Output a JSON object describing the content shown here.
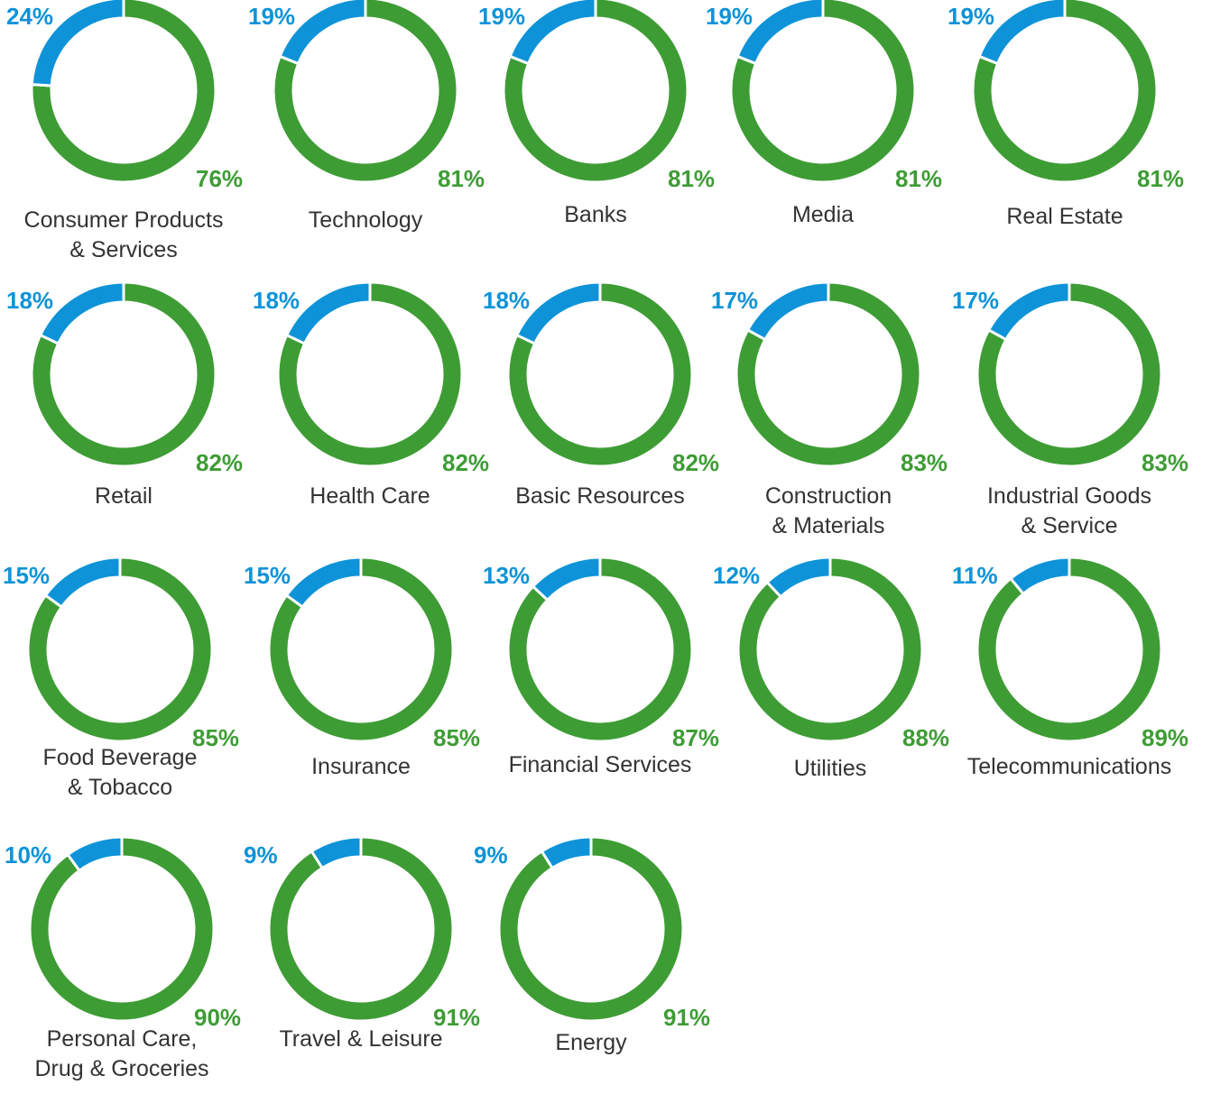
{
  "chart_data": [
    {
      "type": "donut",
      "title": "Consumer Products\n& Services",
      "values": [
        24,
        76
      ],
      "value_labels": [
        "24%",
        "76%"
      ],
      "colors": [
        "#0e93d8",
        "#3e9c35"
      ]
    },
    {
      "type": "donut",
      "title": "Technology",
      "values": [
        19,
        81
      ],
      "value_labels": [
        "19%",
        "81%"
      ],
      "colors": [
        "#0e93d8",
        "#3e9c35"
      ]
    },
    {
      "type": "donut",
      "title": "Banks",
      "values": [
        19,
        81
      ],
      "value_labels": [
        "19%",
        "81%"
      ],
      "colors": [
        "#0e93d8",
        "#3e9c35"
      ]
    },
    {
      "type": "donut",
      "title": "Media",
      "values": [
        19,
        81
      ],
      "value_labels": [
        "19%",
        "81%"
      ],
      "colors": [
        "#0e93d8",
        "#3e9c35"
      ]
    },
    {
      "type": "donut",
      "title": "Real Estate",
      "values": [
        19,
        81
      ],
      "value_labels": [
        "19%",
        "81%"
      ],
      "colors": [
        "#0e93d8",
        "#3e9c35"
      ]
    },
    {
      "type": "donut",
      "title": "Retail",
      "values": [
        18,
        82
      ],
      "value_labels": [
        "18%",
        "82%"
      ],
      "colors": [
        "#0e93d8",
        "#3e9c35"
      ]
    },
    {
      "type": "donut",
      "title": "Health Care",
      "values": [
        18,
        82
      ],
      "value_labels": [
        "18%",
        "82%"
      ],
      "colors": [
        "#0e93d8",
        "#3e9c35"
      ]
    },
    {
      "type": "donut",
      "title": "Basic Resources",
      "values": [
        18,
        82
      ],
      "value_labels": [
        "18%",
        "82%"
      ],
      "colors": [
        "#0e93d8",
        "#3e9c35"
      ]
    },
    {
      "type": "donut",
      "title": "Construction\n& Materials",
      "values": [
        17,
        83
      ],
      "value_labels": [
        "17%",
        "83%"
      ],
      "colors": [
        "#0e93d8",
        "#3e9c35"
      ]
    },
    {
      "type": "donut",
      "title": "Industrial Goods\n& Service",
      "values": [
        17,
        83
      ],
      "value_labels": [
        "17%",
        "83%"
      ],
      "colors": [
        "#0e93d8",
        "#3e9c35"
      ]
    },
    {
      "type": "donut",
      "title": "Food Beverage\n& Tobacco",
      "values": [
        15,
        85
      ],
      "value_labels": [
        "15%",
        "85%"
      ],
      "colors": [
        "#0e93d8",
        "#3e9c35"
      ]
    },
    {
      "type": "donut",
      "title": "Insurance",
      "values": [
        15,
        85
      ],
      "value_labels": [
        "15%",
        "85%"
      ],
      "colors": [
        "#0e93d8",
        "#3e9c35"
      ]
    },
    {
      "type": "donut",
      "title": "Financial Services",
      "values": [
        13,
        87
      ],
      "value_labels": [
        "13%",
        "87%"
      ],
      "colors": [
        "#0e93d8",
        "#3e9c35"
      ]
    },
    {
      "type": "donut",
      "title": "Utilities",
      "values": [
        12,
        88
      ],
      "value_labels": [
        "12%",
        "88%"
      ],
      "colors": [
        "#0e93d8",
        "#3e9c35"
      ]
    },
    {
      "type": "donut",
      "title": "Telecommunications",
      "values": [
        11,
        89
      ],
      "value_labels": [
        "11%",
        "89%"
      ],
      "colors": [
        "#0e93d8",
        "#3e9c35"
      ]
    },
    {
      "type": "donut",
      "title": "Personal Care,\nDrug & Groceries",
      "values": [
        10,
        90
      ],
      "value_labels": [
        "10%",
        "90%"
      ],
      "colors": [
        "#0e93d8",
        "#3e9c35"
      ]
    },
    {
      "type": "donut",
      "title": "Travel & Leisure",
      "values": [
        9,
        91
      ],
      "value_labels": [
        "9%",
        "91%"
      ],
      "colors": [
        "#0e93d8",
        "#3e9c35"
      ]
    },
    {
      "type": "donut",
      "title": "Energy",
      "values": [
        9,
        91
      ],
      "value_labels": [
        "9%",
        "91%"
      ],
      "colors": [
        "#0e93d8",
        "#3e9c35"
      ]
    }
  ]
}
